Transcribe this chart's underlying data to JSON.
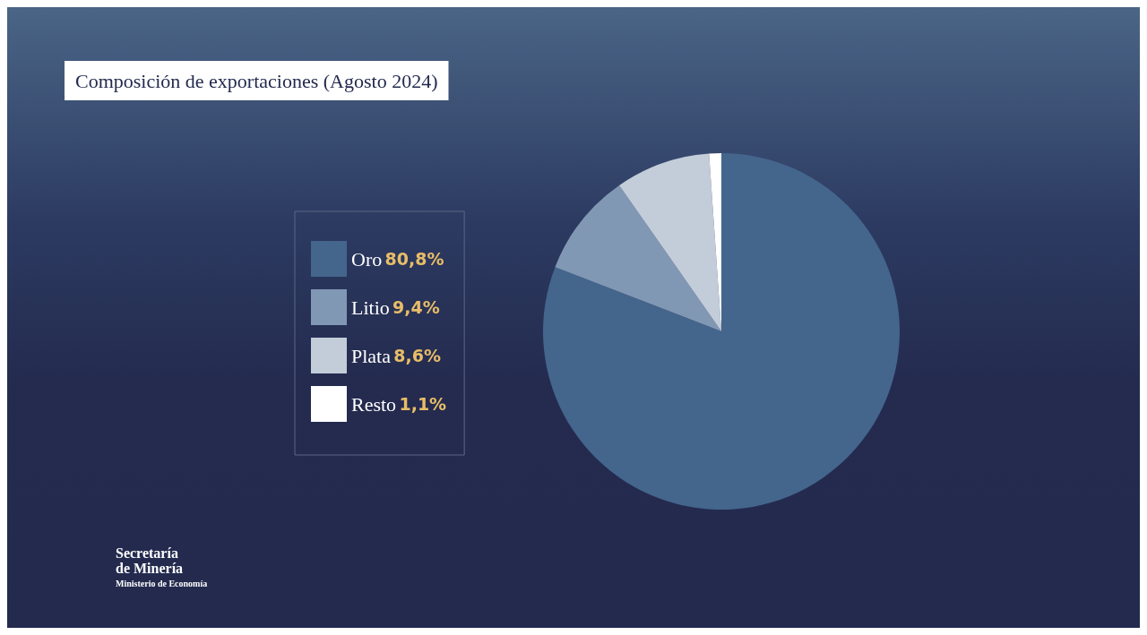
{
  "chart_data": {
    "type": "pie",
    "title": "Composición de exportaciones (Agosto 2024)",
    "categories": [
      "Oro",
      "Litio",
      "Plata",
      "Resto"
    ],
    "values": [
      80.8,
      9.4,
      8.6,
      1.1
    ],
    "value_labels": [
      "80,8%",
      "9,4%",
      "8,6%",
      "1,1%"
    ],
    "colors": [
      "#44658c",
      "#8198b5",
      "#c3cdd9",
      "#ffffff"
    ],
    "legend": "left",
    "annotations": [
      "Secretaría de Minería",
      "Ministerio de Economía"
    ]
  }
}
